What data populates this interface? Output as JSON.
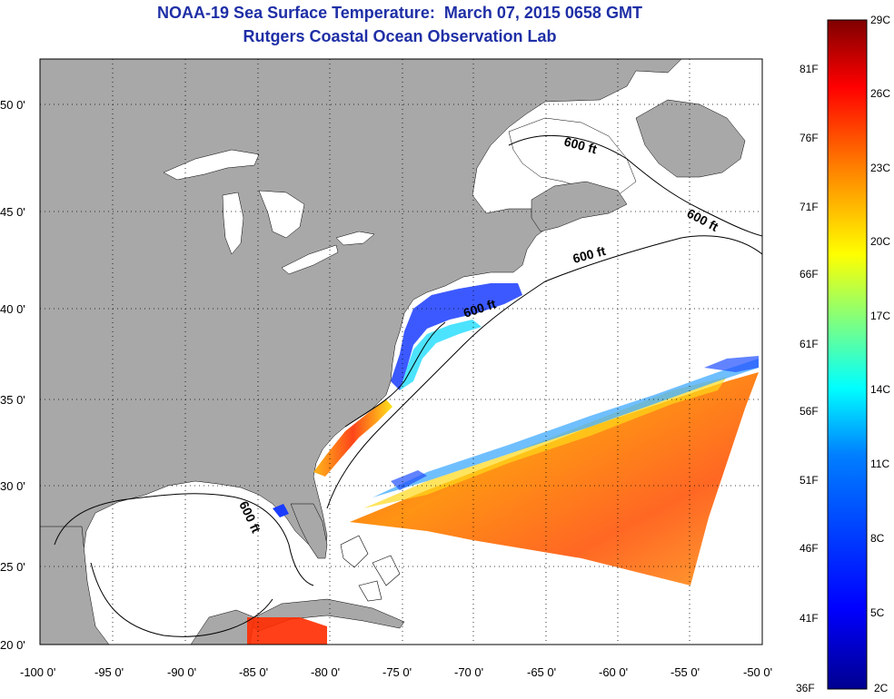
{
  "header": {
    "title": "NOAA-19 Sea Surface Temperature:  March 07, 2015 0658 GMT",
    "subtitle": "Rutgers Coastal Ocean Observation Lab"
  },
  "map": {
    "lat_ticks": [
      "50 0'",
      "45 0'",
      "40 0'",
      "35 0'",
      "30 0'",
      "25 0'",
      "20 0'"
    ],
    "lon_ticks": [
      "-100 0'",
      "-95 0'",
      "-90 0'",
      "-85 0'",
      "-80 0'",
      "-75 0'",
      "-70 0'",
      "-65 0'",
      "-60 0'",
      "-55 0'",
      "-50 0'"
    ],
    "contour_labels": [
      "600 ft",
      "600 ft",
      "600 ft",
      "600 ft",
      "600 ft"
    ],
    "colors": {
      "land": "#a8a8a8",
      "ocean_clouds": "#ffffff",
      "title": "#1f2fa6"
    }
  },
  "colorbar": {
    "celsius_labels": [
      "29C",
      "26C",
      "23C",
      "20C",
      "17C",
      "14C",
      "11C",
      "8C",
      "5C",
      "2C"
    ],
    "fahrenheit_labels": [
      "81F",
      "76F",
      "71F",
      "66F",
      "61F",
      "56F",
      "51F",
      "46F",
      "41F",
      "36F"
    ],
    "colors": [
      "#7f0000",
      "#ff0000",
      "#ff7f00",
      "#ffff00",
      "#7fff7f",
      "#00ffff",
      "#007fff",
      "#0000ff",
      "#00008f"
    ]
  }
}
